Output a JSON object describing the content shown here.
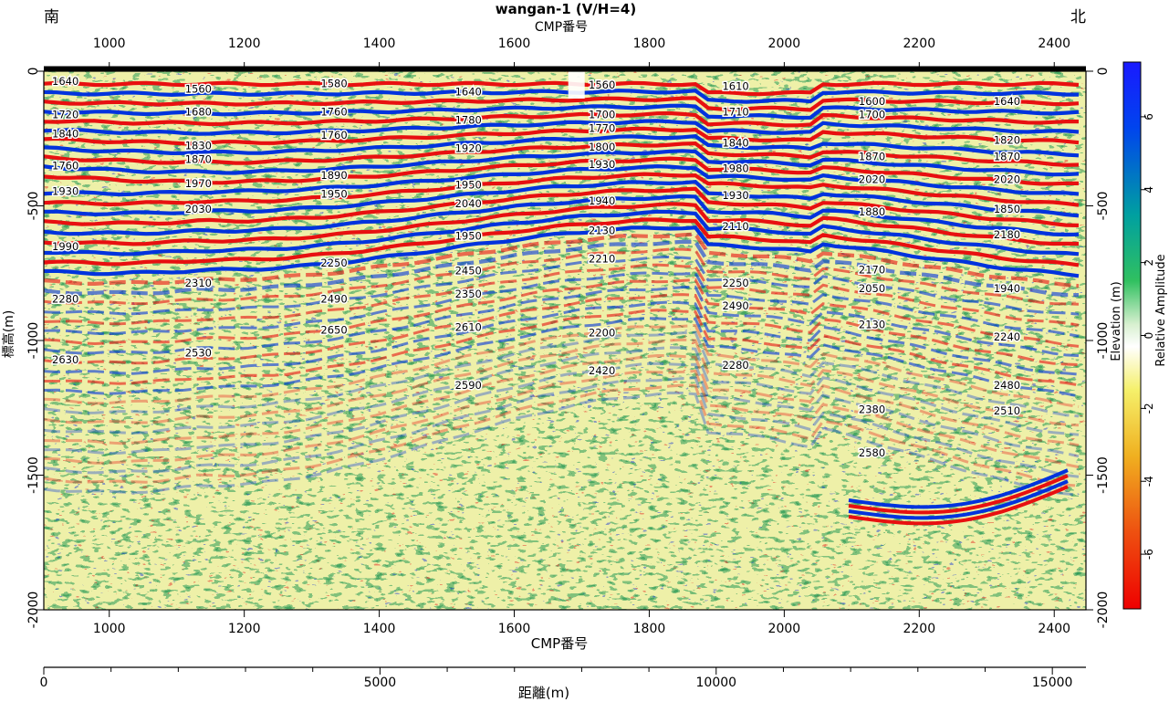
{
  "header": {
    "title": "wangan-1 (V/H=4)",
    "south_label": "南",
    "north_label": "北"
  },
  "axes": {
    "cmp_label_top": "CMP番号",
    "cmp_label_bottom": "CMP番号",
    "elev_label_left": "標高(m)",
    "elev_label_right": "Elevation (m)",
    "distance_label": "距離(m)",
    "colorbar_label": "Relative Amplitude",
    "cmp_range": [
      903,
      2447
    ],
    "cmp_ticks": [
      "1000",
      "1200",
      "1400",
      "1600",
      "1800",
      "2000",
      "2200",
      "2400"
    ],
    "elev_range": [
      0,
      -2000
    ],
    "elev_ticks": [
      "0",
      "-500",
      "-1000",
      "-1500",
      "-2000"
    ],
    "distance_range": [
      0,
      15500
    ],
    "distance_ticks": [
      "0",
      "5000",
      "10000",
      "15000"
    ],
    "colorbar_range": [
      -7.5,
      7.5
    ],
    "colorbar_ticks": [
      "6",
      "4",
      "2",
      "0",
      "-2",
      "-4",
      "-6"
    ]
  },
  "colors": {
    "positive": "#0033dd",
    "negative": "#e81010",
    "mid_green": "#22aa66",
    "mid_yellow": "#f2e23a"
  },
  "velocity_labels": [
    {
      "text": "1640",
      "cmp": 935,
      "elev": -50
    },
    {
      "text": "1720",
      "cmp": 935,
      "elev": -175
    },
    {
      "text": "1840",
      "cmp": 935,
      "elev": -245
    },
    {
      "text": "1760",
      "cmp": 935,
      "elev": -365
    },
    {
      "text": "1930",
      "cmp": 935,
      "elev": -460
    },
    {
      "text": "1990",
      "cmp": 935,
      "elev": -665
    },
    {
      "text": "2280",
      "cmp": 935,
      "elev": -860
    },
    {
      "text": "2630",
      "cmp": 935,
      "elev": -1085
    },
    {
      "text": "1560",
      "cmp": 1132,
      "elev": -80
    },
    {
      "text": "1680",
      "cmp": 1132,
      "elev": -165
    },
    {
      "text": "1830",
      "cmp": 1132,
      "elev": -290
    },
    {
      "text": "1870",
      "cmp": 1132,
      "elev": -340
    },
    {
      "text": "1970",
      "cmp": 1132,
      "elev": -430
    },
    {
      "text": "2030",
      "cmp": 1132,
      "elev": -525
    },
    {
      "text": "2310",
      "cmp": 1132,
      "elev": -800
    },
    {
      "text": "2530",
      "cmp": 1132,
      "elev": -1060
    },
    {
      "text": "1580",
      "cmp": 1333,
      "elev": -60
    },
    {
      "text": "1760",
      "cmp": 1333,
      "elev": -165
    },
    {
      "text": "1760",
      "cmp": 1333,
      "elev": -250
    },
    {
      "text": "1890",
      "cmp": 1333,
      "elev": -400
    },
    {
      "text": "1950",
      "cmp": 1333,
      "elev": -470
    },
    {
      "text": "2250",
      "cmp": 1333,
      "elev": -725
    },
    {
      "text": "2490",
      "cmp": 1333,
      "elev": -860
    },
    {
      "text": "2650",
      "cmp": 1333,
      "elev": -975
    },
    {
      "text": "1640",
      "cmp": 1532,
      "elev": -90
    },
    {
      "text": "1780",
      "cmp": 1532,
      "elev": -195
    },
    {
      "text": "1920",
      "cmp": 1532,
      "elev": -300
    },
    {
      "text": "1950",
      "cmp": 1532,
      "elev": -435
    },
    {
      "text": "2040",
      "cmp": 1532,
      "elev": -505
    },
    {
      "text": "1950",
      "cmp": 1532,
      "elev": -625
    },
    {
      "text": "2450",
      "cmp": 1532,
      "elev": -755
    },
    {
      "text": "2350",
      "cmp": 1532,
      "elev": -840
    },
    {
      "text": "2610",
      "cmp": 1532,
      "elev": -965
    },
    {
      "text": "2590",
      "cmp": 1532,
      "elev": -1180
    },
    {
      "text": "1560",
      "cmp": 1730,
      "elev": -65
    },
    {
      "text": "1700",
      "cmp": 1730,
      "elev": -175
    },
    {
      "text": "1770",
      "cmp": 1730,
      "elev": -225
    },
    {
      "text": "1800",
      "cmp": 1730,
      "elev": -295
    },
    {
      "text": "1930",
      "cmp": 1730,
      "elev": -360
    },
    {
      "text": "1940",
      "cmp": 1730,
      "elev": -495
    },
    {
      "text": "2130",
      "cmp": 1730,
      "elev": -605
    },
    {
      "text": "2210",
      "cmp": 1730,
      "elev": -710
    },
    {
      "text": "2200",
      "cmp": 1730,
      "elev": -985
    },
    {
      "text": "2420",
      "cmp": 1730,
      "elev": -1125
    },
    {
      "text": "1610",
      "cmp": 1928,
      "elev": -70
    },
    {
      "text": "1710",
      "cmp": 1928,
      "elev": -165
    },
    {
      "text": "1840",
      "cmp": 1928,
      "elev": -280
    },
    {
      "text": "1980",
      "cmp": 1928,
      "elev": -375
    },
    {
      "text": "1930",
      "cmp": 1928,
      "elev": -475
    },
    {
      "text": "2110",
      "cmp": 1928,
      "elev": -590
    },
    {
      "text": "2250",
      "cmp": 1928,
      "elev": -800
    },
    {
      "text": "2490",
      "cmp": 1928,
      "elev": -885
    },
    {
      "text": "2280",
      "cmp": 1928,
      "elev": -1105
    },
    {
      "text": "1600",
      "cmp": 2130,
      "elev": -125
    },
    {
      "text": "1700",
      "cmp": 2130,
      "elev": -175
    },
    {
      "text": "1870",
      "cmp": 2130,
      "elev": -330
    },
    {
      "text": "2020",
      "cmp": 2130,
      "elev": -415
    },
    {
      "text": "1880",
      "cmp": 2130,
      "elev": -535
    },
    {
      "text": "2170",
      "cmp": 2130,
      "elev": -750
    },
    {
      "text": "2050",
      "cmp": 2130,
      "elev": -820
    },
    {
      "text": "2130",
      "cmp": 2130,
      "elev": -955
    },
    {
      "text": "2380",
      "cmp": 2130,
      "elev": -1270
    },
    {
      "text": "2580",
      "cmp": 2130,
      "elev": -1430
    },
    {
      "text": "1640",
      "cmp": 2330,
      "elev": -125
    },
    {
      "text": "1820",
      "cmp": 2330,
      "elev": -270
    },
    {
      "text": "1870",
      "cmp": 2330,
      "elev": -330
    },
    {
      "text": "2020",
      "cmp": 2330,
      "elev": -415
    },
    {
      "text": "1850",
      "cmp": 2330,
      "elev": -525
    },
    {
      "text": "2180",
      "cmp": 2330,
      "elev": -620
    },
    {
      "text": "1940",
      "cmp": 2330,
      "elev": -820
    },
    {
      "text": "2240",
      "cmp": 2330,
      "elev": -1000
    },
    {
      "text": "2480",
      "cmp": 2330,
      "elev": -1180
    },
    {
      "text": "2510",
      "cmp": 2330,
      "elev": -1275
    }
  ]
}
